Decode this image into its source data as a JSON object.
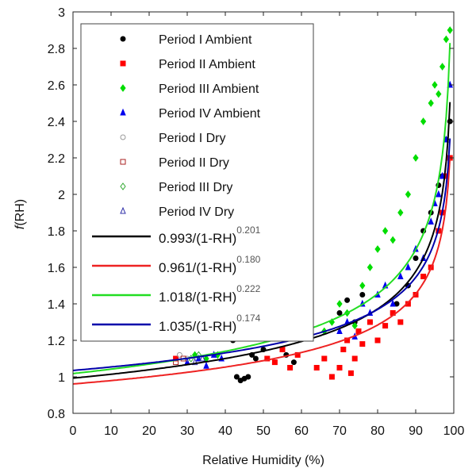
{
  "chart_data": {
    "type": "scatter",
    "xlabel": "Relative Humidity (%)",
    "ylabel_italic": "f",
    "ylabel_rest": "(RH)",
    "xlim": [
      0,
      100
    ],
    "ylim": [
      0.8,
      3
    ],
    "xticks": [
      "0",
      "10",
      "20",
      "30",
      "40",
      "50",
      "60",
      "70",
      "80",
      "90",
      "100"
    ],
    "yticks": [
      "0.8",
      "1",
      "1.2",
      "1.4",
      "1.6",
      "1.8",
      "2",
      "2.2",
      "2.4",
      "2.6",
      "2.8",
      "3"
    ],
    "legend_position": "top-left",
    "series": [
      {
        "name": "Period I Ambient",
        "color": "#000000",
        "marker": "circle",
        "filled": true,
        "points": [
          [
            42,
            1.2
          ],
          [
            43,
            1.0
          ],
          [
            44,
            0.98
          ],
          [
            45,
            0.99
          ],
          [
            46,
            1.0
          ],
          [
            47,
            1.12
          ],
          [
            48,
            1.1
          ],
          [
            50,
            1.15
          ],
          [
            56,
            1.12
          ],
          [
            58,
            1.08
          ],
          [
            70,
            1.35
          ],
          [
            72,
            1.42
          ],
          [
            74,
            1.3
          ],
          [
            76,
            1.45
          ],
          [
            78,
            1.3
          ],
          [
            85,
            1.4
          ],
          [
            88,
            1.5
          ],
          [
            90,
            1.65
          ],
          [
            92,
            1.8
          ],
          [
            94,
            1.9
          ],
          [
            96,
            2.05
          ],
          [
            97,
            2.1
          ],
          [
            98,
            2.3
          ],
          [
            99,
            2.4
          ]
        ]
      },
      {
        "name": "Period II Ambient",
        "color": "#ff0000",
        "marker": "square",
        "filled": true,
        "points": [
          [
            27,
            1.1
          ],
          [
            51,
            1.1
          ],
          [
            53,
            1.08
          ],
          [
            55,
            1.15
          ],
          [
            57,
            1.05
          ],
          [
            59,
            1.12
          ],
          [
            64,
            1.05
          ],
          [
            66,
            1.1
          ],
          [
            68,
            1.0
          ],
          [
            70,
            1.05
          ],
          [
            71,
            1.15
          ],
          [
            72,
            1.2
          ],
          [
            73,
            1.02
          ],
          [
            74,
            1.1
          ],
          [
            75,
            1.25
          ],
          [
            76,
            1.18
          ],
          [
            78,
            1.3
          ],
          [
            80,
            1.2
          ],
          [
            82,
            1.28
          ],
          [
            84,
            1.35
          ],
          [
            86,
            1.3
          ],
          [
            88,
            1.4
          ],
          [
            90,
            1.45
          ],
          [
            92,
            1.55
          ],
          [
            94,
            1.6
          ],
          [
            96,
            1.8
          ],
          [
            97,
            1.9
          ],
          [
            98,
            2.1
          ],
          [
            99,
            2.2
          ]
        ]
      },
      {
        "name": "Period III Ambient",
        "color": "#00dd00",
        "marker": "diamond",
        "filled": true,
        "points": [
          [
            32,
            1.12
          ],
          [
            35,
            1.1
          ],
          [
            38,
            1.12
          ],
          [
            66,
            1.25
          ],
          [
            68,
            1.3
          ],
          [
            70,
            1.4
          ],
          [
            72,
            1.35
          ],
          [
            74,
            1.28
          ],
          [
            76,
            1.5
          ],
          [
            78,
            1.6
          ],
          [
            80,
            1.7
          ],
          [
            82,
            1.8
          ],
          [
            84,
            1.75
          ],
          [
            86,
            1.9
          ],
          [
            88,
            2.0
          ],
          [
            90,
            2.2
          ],
          [
            92,
            2.4
          ],
          [
            94,
            2.5
          ],
          [
            95,
            2.6
          ],
          [
            96,
            2.55
          ],
          [
            97,
            2.7
          ],
          [
            98,
            2.85
          ],
          [
            99,
            2.9
          ]
        ]
      },
      {
        "name": "Period IV Ambient",
        "color": "#0000ee",
        "marker": "triangle",
        "filled": true,
        "points": [
          [
            30,
            1.08
          ],
          [
            33,
            1.1
          ],
          [
            35,
            1.06
          ],
          [
            37,
            1.12
          ],
          [
            39,
            1.1
          ],
          [
            70,
            1.25
          ],
          [
            72,
            1.3
          ],
          [
            74,
            1.22
          ],
          [
            76,
            1.4
          ],
          [
            78,
            1.35
          ],
          [
            80,
            1.45
          ],
          [
            82,
            1.5
          ],
          [
            84,
            1.4
          ],
          [
            86,
            1.55
          ],
          [
            88,
            1.6
          ],
          [
            90,
            1.7
          ],
          [
            92,
            1.65
          ],
          [
            94,
            1.85
          ],
          [
            95,
            1.95
          ],
          [
            96,
            2.0
          ],
          [
            97,
            2.1
          ],
          [
            98,
            2.3
          ],
          [
            99,
            2.6
          ]
        ]
      },
      {
        "name": "Period I Dry",
        "color": "#999999",
        "marker": "circle",
        "filled": false,
        "points": [
          [
            28,
            1.12
          ],
          [
            30,
            1.1
          ]
        ]
      },
      {
        "name": "Period II Dry",
        "color": "#aa2222",
        "marker": "square",
        "filled": false,
        "points": [
          [
            27,
            1.08
          ],
          [
            29,
            1.1
          ]
        ]
      },
      {
        "name": "Period III Dry",
        "color": "#33aa33",
        "marker": "diamond",
        "filled": false,
        "points": [
          [
            31,
            1.1
          ],
          [
            33,
            1.12
          ]
        ]
      },
      {
        "name": "Period IV Dry",
        "color": "#3333aa",
        "marker": "triangle",
        "filled": false,
        "points": [
          [
            32,
            1.08
          ],
          [
            34,
            1.1
          ]
        ]
      }
    ],
    "fits": [
      {
        "label": "0.993/(1-RH)",
        "exp_label": "0.201",
        "a": 0.993,
        "b": 0.201,
        "color": "#000000"
      },
      {
        "label": "0.961/(1-RH)",
        "exp_label": "0.180",
        "a": 0.961,
        "b": 0.18,
        "color": "#ee2222"
      },
      {
        "label": "1.018/(1-RH)",
        "exp_label": "0.222",
        "a": 1.018,
        "b": 0.222,
        "color": "#22dd22"
      },
      {
        "label": "1.035/(1-RH)",
        "exp_label": "0.174",
        "a": 1.035,
        "b": 0.174,
        "color": "#0000aa"
      }
    ]
  }
}
